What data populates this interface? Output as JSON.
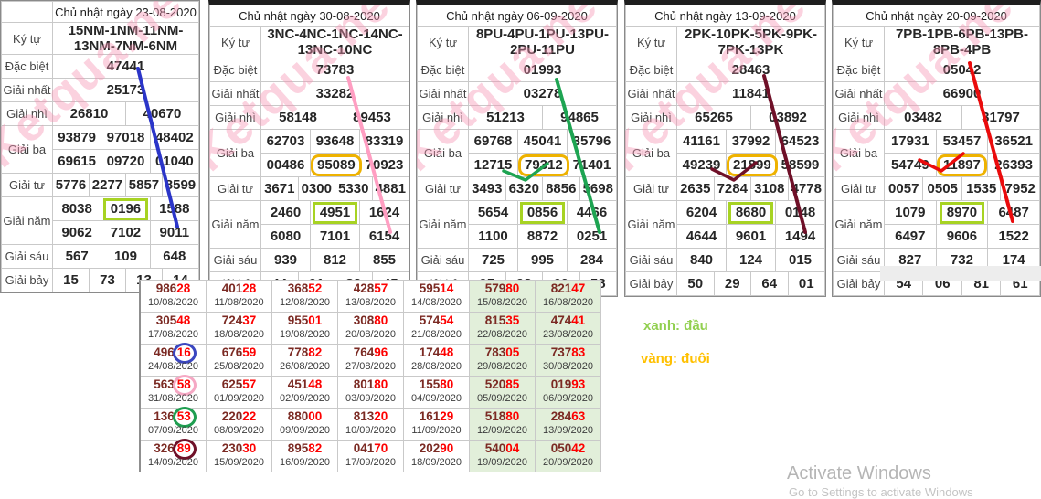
{
  "labels": {
    "ky_tu": "Ký tự",
    "dac_biet": "Đặc biệt",
    "giai_nhat": "Giải nhất",
    "giai_nhi": "Giải nhì",
    "giai_ba": "Giải ba",
    "giai_tu": "Giải tư",
    "giai_nam": "Giải năm",
    "giai_sau": "Giải sáu",
    "giai_bay": "Giải bảy"
  },
  "watermark": "Ketqua.net",
  "tables": [
    {
      "title": "Chủ nhật ngày 23-08-2020",
      "ky_tu": "15NM-1NM-11NM-13NM-7NM-6NM",
      "dac_biet": "47441",
      "giai_nhat": "25173",
      "giai_nhi": [
        "26810",
        "40670"
      ],
      "giai_ba": [
        [
          "93879",
          "97018",
          "48402"
        ],
        [
          "69615",
          "09720",
          "01040"
        ]
      ],
      "giai_tu": [
        "5776",
        "2277",
        "5857",
        "8599"
      ],
      "giai_nam": [
        [
          "8038",
          "0196",
          "1588"
        ],
        [
          "9062",
          "7102",
          "9011"
        ]
      ],
      "giai_sau": [
        "567",
        "109",
        "648"
      ],
      "giai_bay": [
        "15",
        "73",
        "13",
        "14"
      ],
      "annotations": {
        "green_box": "giai_nam[0][1]",
        "orange_box": null,
        "line_color": "#2b35c8",
        "has_check": false
      }
    },
    {
      "title": "Chủ nhật ngày 30-08-2020",
      "ky_tu": "3NC-4NC-1NC-14NC-13NC-10NC",
      "dac_biet": "73783",
      "giai_nhat": "33282",
      "giai_nhi": [
        "58148",
        "89453"
      ],
      "giai_ba": [
        [
          "62703",
          "93648",
          "83319"
        ],
        [
          "00486",
          "95089",
          "70923"
        ]
      ],
      "giai_tu": [
        "3671",
        "0300",
        "5330",
        "4881"
      ],
      "giai_nam": [
        [
          "2460",
          "4951",
          "1624"
        ],
        [
          "6080",
          "7101",
          "6154"
        ]
      ],
      "giai_sau": [
        "939",
        "812",
        "855"
      ],
      "giai_bay": [
        "44",
        "91",
        "83",
        "45"
      ],
      "annotations": {
        "green_box": "giai_nam[0][1]",
        "orange_box": "giai_ba[1][1]",
        "line_color": "#ff9ec2",
        "has_check": false
      }
    },
    {
      "title": "Chủ nhật ngày 06-09-2020",
      "ky_tu": "8PU-4PU-1PU-13PU-2PU-11PU",
      "dac_biet": "01993",
      "giai_nhat": "03278",
      "giai_nhi": [
        "51213",
        "94865"
      ],
      "giai_ba": [
        [
          "69768",
          "45041",
          "35796"
        ],
        [
          "12715",
          "79312",
          "71401"
        ]
      ],
      "giai_tu": [
        "3493",
        "6320",
        "8856",
        "5698"
      ],
      "giai_nam": [
        [
          "5654",
          "0856",
          "4466"
        ],
        [
          "1100",
          "8872",
          "0251"
        ]
      ],
      "giai_sau": [
        "725",
        "995",
        "284"
      ],
      "giai_bay": [
        "95",
        "98",
        "60",
        "58"
      ],
      "annotations": {
        "green_box": "giai_nam[0][1]",
        "orange_box": "giai_ba[1][1]",
        "line_color": "#1ea452",
        "has_check": true
      }
    },
    {
      "title": "Chủ nhật ngày 13-09-2020",
      "ky_tu": "2PK-10PK-5PK-9PK-7PK-13PK",
      "dac_biet": "28463",
      "giai_nhat": "11841",
      "giai_nhi": [
        "65265",
        "03892"
      ],
      "giai_ba": [
        [
          "41161",
          "37992",
          "64523"
        ],
        [
          "49239",
          "21899",
          "58599"
        ]
      ],
      "giai_tu": [
        "2635",
        "7284",
        "3108",
        "4778"
      ],
      "giai_nam": [
        [
          "6204",
          "8680",
          "0148"
        ],
        [
          "4644",
          "9601",
          "1494"
        ]
      ],
      "giai_sau": [
        "840",
        "124",
        "015"
      ],
      "giai_bay": [
        "50",
        "29",
        "64",
        "01"
      ],
      "annotations": {
        "green_box": "giai_nam[0][1]",
        "orange_box": "giai_ba[1][1]",
        "line_color": "#6f1028",
        "has_check": true
      }
    },
    {
      "title": "Chủ nhật ngày 20-09-2020",
      "ky_tu": "7PB-1PB-6PB-13PB-8PB-4PB",
      "dac_biet": "05042",
      "giai_nhat": "66900",
      "giai_nhi": [
        "03482",
        "31797"
      ],
      "giai_ba": [
        [
          "17931",
          "53457",
          "36521"
        ],
        [
          "54749",
          "11897",
          "26393"
        ]
      ],
      "giai_tu": [
        "0057",
        "0505",
        "1535",
        "7952"
      ],
      "giai_nam": [
        [
          "1079",
          "8970",
          "6487"
        ],
        [
          "6497",
          "9606",
          "1522"
        ]
      ],
      "giai_sau": [
        "827",
        "732",
        "174"
      ],
      "giai_bay": [
        "54",
        "06",
        "81",
        "61"
      ],
      "annotations": {
        "green_box": "giai_nam[0][1]",
        "orange_box": "giai_ba[1][1]",
        "line_color": "#ea0b0c",
        "has_check": true
      }
    }
  ],
  "results_grid": {
    "weekend_bg": "#e2efda",
    "rows": [
      {
        "cells": [
          {
            "num": "98628",
            "date": "10/08/2020"
          },
          {
            "num": "40128",
            "date": "11/08/2020"
          },
          {
            "num": "36852",
            "date": "12/08/2020"
          },
          {
            "num": "42857",
            "date": "13/08/2020"
          },
          {
            "num": "59514",
            "date": "14/08/2020"
          },
          {
            "num": "57980",
            "date": "15/08/2020",
            "weekend": true
          },
          {
            "num": "82147",
            "date": "16/08/2020",
            "weekend": true
          }
        ]
      },
      {
        "cells": [
          {
            "num": "30548",
            "date": "17/08/2020"
          },
          {
            "num": "72437",
            "date": "18/08/2020"
          },
          {
            "num": "95501",
            "date": "19/08/2020"
          },
          {
            "num": "30880",
            "date": "20/08/2020"
          },
          {
            "num": "57454",
            "date": "21/08/2020"
          },
          {
            "num": "81535",
            "date": "22/08/2020",
            "weekend": true
          },
          {
            "num": "47441",
            "date": "23/08/2020",
            "weekend": true
          }
        ]
      },
      {
        "cells": [
          {
            "num": "49616",
            "date": "24/08/2020",
            "circle": "#3a46c0"
          },
          {
            "num": "67659",
            "date": "25/08/2020"
          },
          {
            "num": "77882",
            "date": "26/08/2020"
          },
          {
            "num": "76496",
            "date": "27/08/2020"
          },
          {
            "num": "17448",
            "date": "28/08/2020"
          },
          {
            "num": "78305",
            "date": "29/08/2020",
            "weekend": true
          },
          {
            "num": "73783",
            "date": "30/08/2020",
            "weekend": true
          }
        ]
      },
      {
        "cells": [
          {
            "num": "56358",
            "date": "31/08/2020",
            "circle": "#f5a8c4"
          },
          {
            "num": "62557",
            "date": "01/09/2020"
          },
          {
            "num": "45148",
            "date": "02/09/2020"
          },
          {
            "num": "80180",
            "date": "03/09/2020"
          },
          {
            "num": "15580",
            "date": "04/09/2020"
          },
          {
            "num": "52085",
            "date": "05/09/2020",
            "weekend": true
          },
          {
            "num": "01993",
            "date": "06/09/2020",
            "weekend": true
          }
        ]
      },
      {
        "cells": [
          {
            "num": "13653",
            "date": "07/09/2020",
            "circle": "#1e9e50"
          },
          {
            "num": "22022",
            "date": "08/09/2020"
          },
          {
            "num": "88000",
            "date": "09/09/2020"
          },
          {
            "num": "81320",
            "date": "10/09/2020"
          },
          {
            "num": "16129",
            "date": "11/09/2020"
          },
          {
            "num": "51880",
            "date": "12/09/2020",
            "weekend": true
          },
          {
            "num": "28463",
            "date": "13/09/2020",
            "weekend": true
          }
        ]
      },
      {
        "cells": [
          {
            "num": "32689",
            "date": "14/09/2020",
            "circle": "#6f1028"
          },
          {
            "num": "23030",
            "date": "15/09/2020"
          },
          {
            "num": "89582",
            "date": "16/09/2020"
          },
          {
            "num": "04170",
            "date": "17/09/2020"
          },
          {
            "num": "20290",
            "date": "18/09/2020"
          },
          {
            "num": "54004",
            "date": "19/09/2020",
            "weekend": true
          },
          {
            "num": "05042",
            "date": "20/09/2020",
            "weekend": true
          }
        ]
      }
    ]
  },
  "legend": {
    "dau": {
      "text": "xanh: đầu",
      "color": "#92d050"
    },
    "duoi": {
      "text": "vàng: đuôi",
      "color": "#ffc000"
    }
  },
  "os_watermark": {
    "line1": "Activate Windows",
    "line2": "Go to Settings to activate Windows"
  }
}
